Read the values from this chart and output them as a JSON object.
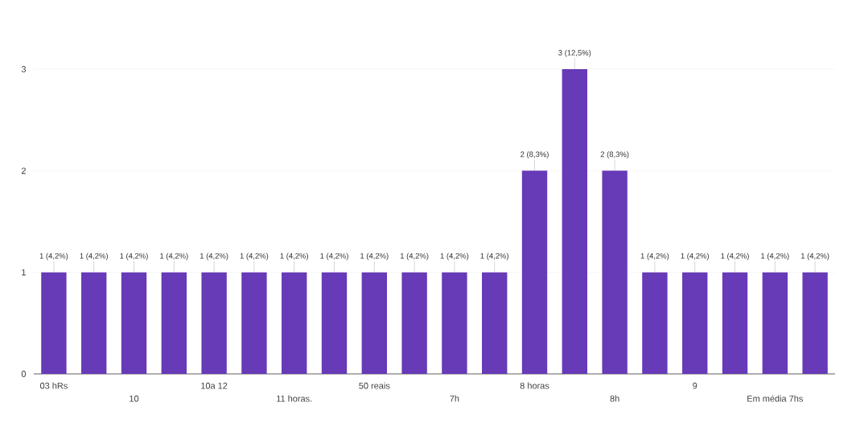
{
  "chart_data": {
    "type": "bar",
    "categories": [
      "03 hRs",
      null,
      "10",
      null,
      "10a 12",
      null,
      "11 horas.",
      null,
      "50 reais",
      null,
      "7h",
      null,
      "8 horas",
      null,
      "8h",
      null,
      "9",
      null,
      "Em média 7hs",
      null
    ],
    "values": [
      1,
      1,
      1,
      1,
      1,
      1,
      1,
      1,
      1,
      1,
      1,
      1,
      2,
      3,
      2,
      1,
      1,
      1,
      1,
      1
    ],
    "value_labels": [
      "1 (4,2%)",
      "1 (4,2%)",
      "1 (4,2%)",
      "1 (4,2%)",
      "1 (4,2%)",
      "1 (4,2%)",
      "1 (4,2%)",
      "1 (4,2%)",
      "1 (4,2%)",
      "1 (4,2%)",
      "1 (4,2%)",
      "1 (4,2%)",
      "2 (8,3%)",
      "3 (12,5%)",
      "2 (8,3%)",
      "1 (4,2%)",
      "1 (4,2%)",
      "1 (4,2%)",
      "1 (4,2%)",
      "1 (4,2%)"
    ],
    "color": "#673ab7",
    "ylim": [
      0,
      3
    ],
    "yticks": [
      0,
      1,
      2,
      3
    ],
    "grid": "y"
  }
}
